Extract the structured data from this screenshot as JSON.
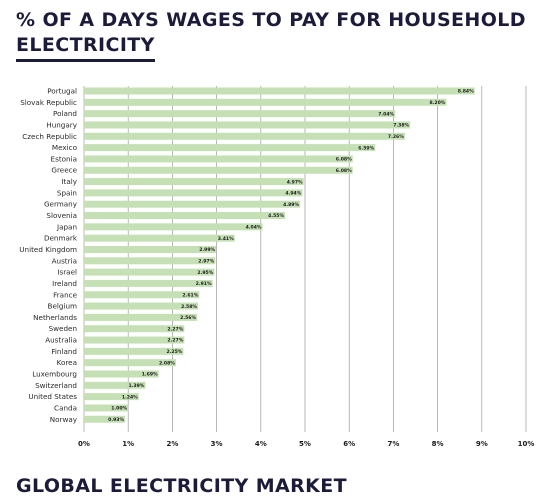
{
  "page": {
    "title_line1": "% OF A DAYS WAGES TO PAY FOR HOUSEHOLD",
    "title_line2": "ELECTRICITY",
    "section_heading": "GLOBAL ELECTRICITY MARKET"
  },
  "colors": {
    "bar": "#c5e0b5",
    "gridline": "#9a9a9a",
    "heading": "#1c1c3a"
  },
  "chart_data": {
    "type": "bar",
    "orientation": "horizontal",
    "categories": [
      "Portugal",
      "Slovak Republic",
      "Poland",
      "Hungary",
      "Czech Republic",
      "Mexico",
      "Estonia",
      "Greece",
      "Italy",
      "Spain",
      "Germany",
      "Slovenia",
      "Japan",
      "Denmark",
      "United Kingdom",
      "Austria",
      "Israel",
      "Ireland",
      "France",
      "Belgium",
      "Netherlands",
      "Sweden",
      "Australia",
      "Finland",
      "Korea",
      "Luxembourg",
      "Switzerland",
      "United States",
      "Canda",
      "Norway"
    ],
    "values": [
      8.84,
      8.2,
      7.04,
      7.38,
      7.26,
      6.59,
      6.08,
      6.08,
      4.97,
      4.94,
      4.89,
      4.55,
      4.04,
      3.41,
      2.99,
      2.97,
      2.95,
      2.91,
      2.61,
      2.58,
      2.56,
      2.27,
      2.27,
      2.25,
      2.08,
      1.69,
      1.39,
      1.24,
      1.0,
      0.93
    ],
    "value_labels": [
      "8.84%",
      "8.20%",
      "7.04%",
      "7.38%",
      "7.26%",
      "6.59%",
      "6.08%",
      "6.08%",
      "4.97%",
      "4.94%",
      "4.89%",
      "4.55%",
      "4.04%",
      "3.41%",
      "2.99%",
      "2.97%",
      "2.95%",
      "2.91%",
      "2.61%",
      "2.58%",
      "2.56%",
      "2.27%",
      "2.27%",
      "2.25%",
      "2.08%",
      "1.69%",
      "1.39%",
      "1.24%",
      "1.00%",
      "0.93%"
    ],
    "x_ticks": [
      0,
      1,
      2,
      3,
      4,
      5,
      6,
      7,
      8,
      9,
      10
    ],
    "x_tick_labels": [
      "0%",
      "1%",
      "2%",
      "3%",
      "4%",
      "5%",
      "6%",
      "7%",
      "8%",
      "9%",
      "10%"
    ],
    "xlim": [
      0,
      10
    ],
    "grid": true,
    "legend": "none",
    "title": "% OF A DAYS WAGES TO PAY FOR HOUSEHOLD ELECTRICITY",
    "xlabel": "",
    "ylabel": ""
  }
}
